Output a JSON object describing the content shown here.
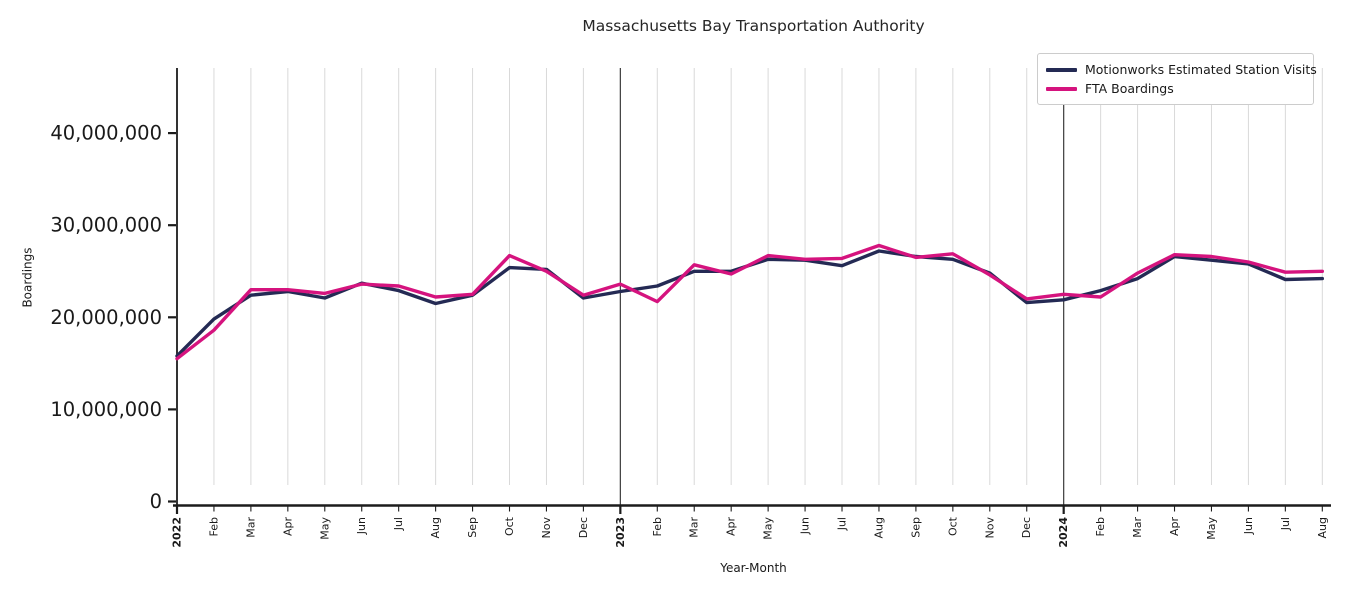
{
  "chart_data": {
    "type": "line",
    "title": "Massachusetts Bay Transportation Authority",
    "xlabel": "Year-Month",
    "ylabel": "Boardings",
    "ylim": [
      0,
      47500000
    ],
    "yticks": [
      0,
      10000000,
      20000000,
      30000000,
      40000000
    ],
    "grid": "vertical-per-month, dark rules at year boundaries",
    "legend_position": "top-right",
    "categories": [
      "2022",
      "Feb",
      "Mar",
      "Apr",
      "May",
      "Jun",
      "Jul",
      "Aug",
      "Sep",
      "Oct",
      "Nov",
      "Dec",
      "2023",
      "Feb",
      "Mar",
      "Apr",
      "May",
      "Jun",
      "Jul",
      "Aug",
      "Sep",
      "Oct",
      "Nov",
      "Dec",
      "2024",
      "Feb",
      "Mar",
      "Apr",
      "May",
      "Jun",
      "Jul",
      "Aug"
    ],
    "year_tick_indices": [
      0,
      12,
      24
    ],
    "colors": {
      "axis": "#1c1c1c",
      "tick_label": "#1a1a1a",
      "gridline": "#d9d9d9",
      "year_rule": "#3a3a3a"
    },
    "series": [
      {
        "name": "Motionworks Estimated Station Visits",
        "color": "#242a54",
        "values": [
          15800000,
          19800000,
          22400000,
          22800000,
          22100000,
          23700000,
          22900000,
          21500000,
          22400000,
          25400000,
          25200000,
          22100000,
          22800000,
          23400000,
          25000000,
          25000000,
          26300000,
          26200000,
          25600000,
          27200000,
          26600000,
          26300000,
          24800000,
          21600000,
          21900000,
          22900000,
          24200000,
          26600000,
          26200000,
          25800000,
          24100000,
          24200000
        ]
      },
      {
        "name": "FTA Boardings",
        "color": "#d5137e",
        "values": [
          15500000,
          18600000,
          23000000,
          23000000,
          22600000,
          23600000,
          23400000,
          22200000,
          22500000,
          26700000,
          25000000,
          22400000,
          23600000,
          21700000,
          25700000,
          24700000,
          26700000,
          26300000,
          26400000,
          27800000,
          26500000,
          26900000,
          24600000,
          22000000,
          22500000,
          22200000,
          24800000,
          26800000,
          26600000,
          26000000,
          24900000,
          25000000
        ]
      }
    ]
  }
}
